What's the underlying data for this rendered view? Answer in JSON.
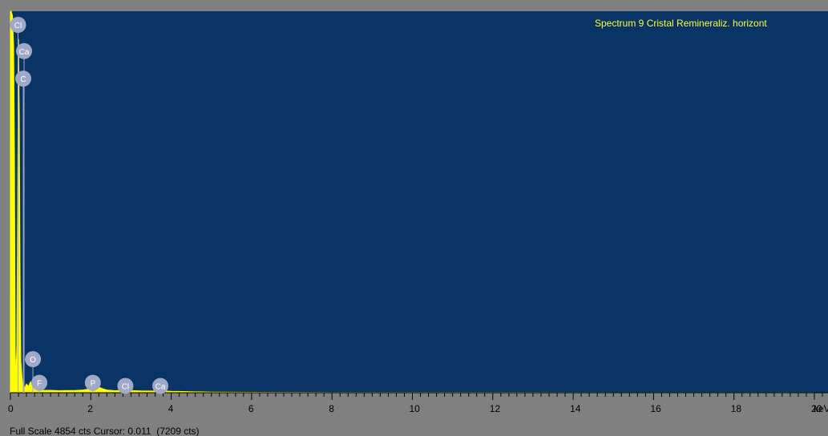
{
  "chart_data": {
    "type": "area",
    "title": "Spectrum 9 Cristal Remineraliz. horizont",
    "xlabel": "keV",
    "ylabel": "",
    "xlim": [
      0,
      20.3
    ],
    "ylim": [
      0,
      4854
    ],
    "x_ticks": [
      "0",
      "2",
      "4",
      "6",
      "8",
      "10",
      "12",
      "14",
      "16",
      "18",
      "20"
    ],
    "x_tick_values": [
      0,
      2,
      4,
      6,
      8,
      10,
      12,
      14,
      16,
      18,
      20
    ],
    "grid": false,
    "legend": "none",
    "colors": {
      "background": "#0a3366",
      "spectrum": "#ffff00",
      "frame": "#808080",
      "title": "#ffff33",
      "peak_label": "#a0a8c8"
    },
    "series": [
      {
        "values_x": [
          0.0,
          0.02,
          0.05,
          0.08,
          0.1,
          0.12,
          0.14,
          0.16,
          0.18,
          0.2,
          0.22,
          0.24,
          0.26,
          0.28,
          0.3,
          0.32,
          0.35,
          0.4,
          0.45,
          0.5,
          0.55,
          0.6,
          0.7,
          0.8,
          1.0,
          1.2,
          1.4,
          1.6,
          1.8,
          2.0,
          2.1,
          2.2,
          2.3,
          2.4,
          2.6,
          2.8,
          3.0,
          3.3,
          3.6,
          3.7,
          4.0,
          4.3,
          4.6,
          5.0,
          6.0,
          8.0,
          12.0,
          16.0,
          20.0
        ],
        "values_y": [
          4854,
          4854,
          4800,
          4400,
          3000,
          500,
          200,
          600,
          2500,
          4500,
          3500,
          1500,
          400,
          250,
          120,
          80,
          60,
          110,
          80,
          140,
          60,
          70,
          40,
          30,
          30,
          25,
          28,
          28,
          35,
          50,
          60,
          70,
          50,
          35,
          25,
          30,
          28,
          22,
          22,
          25,
          18,
          15,
          12,
          8,
          5,
          3,
          2,
          1,
          1
        ]
      }
    ],
    "peak_labels": [
      {
        "element": "Cl",
        "x": 0.15,
        "y": 4854
      },
      {
        "element": "Ca",
        "x": 0.3,
        "y": 4520
      },
      {
        "element": "C",
        "x": 0.28,
        "y": 4170
      },
      {
        "element": "O",
        "x": 0.52,
        "y": 600
      },
      {
        "element": "F",
        "x": 0.68,
        "y": 300
      },
      {
        "element": "P",
        "x": 2.01,
        "y": 300
      },
      {
        "element": "Cl",
        "x": 2.82,
        "y": 260
      },
      {
        "element": "Ca",
        "x": 3.69,
        "y": 260
      }
    ]
  },
  "status": {
    "full_scale": "Full Scale 4854 cts Cursor: 0.011  (7209 cts)"
  }
}
